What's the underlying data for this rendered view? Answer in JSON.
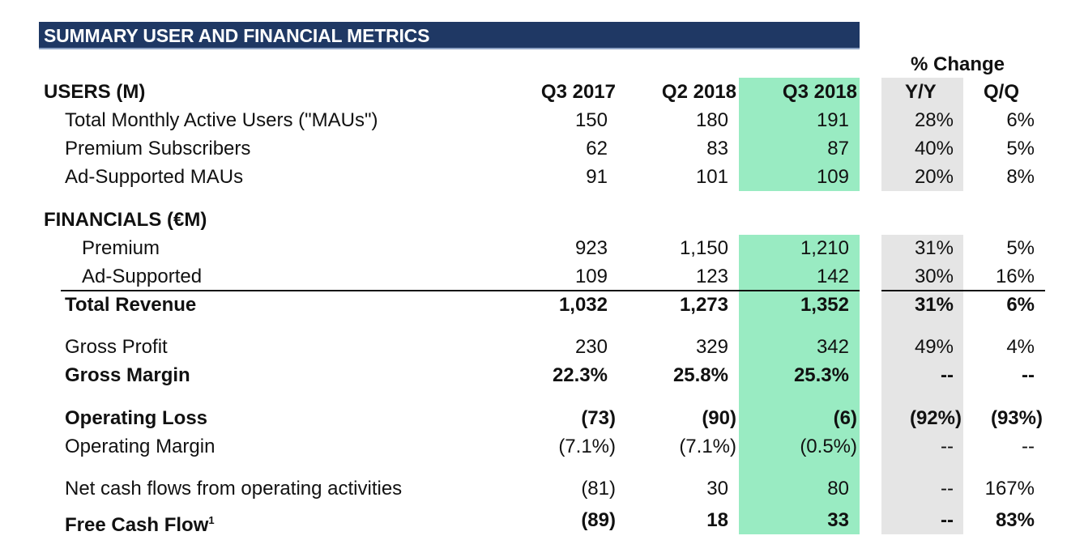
{
  "title": "SUMMARY USER AND FINANCIAL METRICS",
  "pct_change_label": "% Change",
  "columns": [
    "Q3 2017",
    "Q2 2018",
    "Q3 2018",
    "Y/Y",
    "Q/Q"
  ],
  "users_header": "USERS (M)",
  "financials_header": "FINANCIALS (€M)",
  "rows": [
    {
      "label": "Total Monthly Active Users (\"MAUs\")",
      "values": [
        "150",
        "180",
        "191",
        "28%",
        "6%"
      ]
    },
    {
      "label": "Premium Subscribers",
      "values": [
        "62",
        "83",
        "87",
        "40%",
        "5%"
      ]
    },
    {
      "label": "Ad-Supported MAUs",
      "values": [
        "91",
        "101",
        "109",
        "20%",
        "8%"
      ]
    },
    {
      "label": "Premium",
      "values": [
        "923",
        "1,150",
        "1,210",
        "31%",
        "5%"
      ]
    },
    {
      "label": "Ad-Supported",
      "values": [
        "109",
        "123",
        "142",
        "30%",
        "16%"
      ]
    },
    {
      "label": "Total Revenue",
      "values": [
        "1,032",
        "1,273",
        "1,352",
        "31%",
        "6%"
      ]
    },
    {
      "label": "Gross Profit",
      "values": [
        "230",
        "329",
        "342",
        "49%",
        "4%"
      ]
    },
    {
      "label": "Gross Margin",
      "values": [
        "22.3%",
        "25.8%",
        "25.3%",
        "--",
        "--"
      ]
    },
    {
      "label": "Operating Loss",
      "values": [
        "(73)",
        "(90)",
        "(6)",
        "(92%)",
        "(93%)"
      ]
    },
    {
      "label": "Operating Margin",
      "values": [
        "(7.1%)",
        "(7.1%)",
        "(0.5%)",
        "--",
        "--"
      ]
    },
    {
      "label": "Net cash flows from operating activities",
      "values": [
        "(81)",
        "30",
        "80",
        "--",
        "167%"
      ]
    },
    {
      "label": "Free Cash Flow",
      "footnote": "1",
      "values": [
        "(89)",
        "18",
        "33",
        "--",
        "83%"
      ]
    }
  ],
  "colors": {
    "title_band": "#1f3864",
    "highlight_column": "#99ebc2",
    "change_column": "#e5e5e5"
  }
}
